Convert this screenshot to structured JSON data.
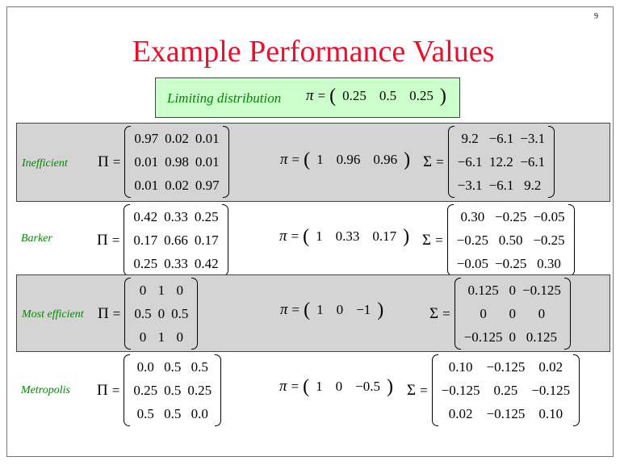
{
  "page_number": "9",
  "title": "Example Performance Values",
  "limiting": {
    "label": "Limiting distribution",
    "symbol": "π",
    "equals": "=",
    "values": [
      "0.25",
      "0.5",
      "0.25"
    ]
  },
  "symbols": {
    "Pi": "Π",
    "pi": "π",
    "Sigma": "Σ",
    "equals": "=",
    "lparen": "(",
    "rparen": ")"
  },
  "rows": [
    {
      "label": "Inefficient",
      "Pi": [
        [
          "0.97",
          "0.02",
          "0.01"
        ],
        [
          "0.01",
          "0.98",
          "0.01"
        ],
        [
          "0.01",
          "0.02",
          "0.97"
        ]
      ],
      "pi": [
        "1",
        "0.96",
        "0.96"
      ],
      "Sigma": [
        [
          "9.2",
          "−6.1",
          "−3.1"
        ],
        [
          "−6.1",
          "12.2",
          "−6.1"
        ],
        [
          "−3.1",
          "−6.1",
          "9.2"
        ]
      ]
    },
    {
      "label": "Barker",
      "Pi": [
        [
          "0.42",
          "0.33",
          "0.25"
        ],
        [
          "0.17",
          "0.66",
          "0.17"
        ],
        [
          "0.25",
          "0.33",
          "0.42"
        ]
      ],
      "pi": [
        "1",
        "0.33",
        "0.17"
      ],
      "Sigma": [
        [
          "0.30",
          "−0.25",
          "−0.05"
        ],
        [
          "−0.25",
          "0.50",
          "−0.25"
        ],
        [
          "−0.05",
          "−0.25",
          "0.30"
        ]
      ]
    },
    {
      "label": "Most efficient",
      "Pi": [
        [
          "0",
          "1",
          "0"
        ],
        [
          "0.5",
          "0",
          "0.5"
        ],
        [
          "0",
          "1",
          "0"
        ]
      ],
      "pi": [
        "1",
        "0",
        "−1"
      ],
      "Sigma": [
        [
          "0.125",
          "0",
          "−0.125"
        ],
        [
          "0",
          "0",
          "0"
        ],
        [
          "−0.125",
          "0",
          "0.125"
        ]
      ]
    },
    {
      "label": "Metropolis",
      "Pi": [
        [
          "0.0",
          "0.5",
          "0.5"
        ],
        [
          "0.25",
          "0.5",
          "0.25"
        ],
        [
          "0.5",
          "0.5",
          "0.0"
        ]
      ],
      "pi": [
        "1",
        "0",
        "−0.5"
      ],
      "Sigma": [
        [
          "0.10",
          "−0.125",
          "0.02"
        ],
        [
          "−0.125",
          "0.25",
          "−0.125"
        ],
        [
          "0.02",
          "−0.125",
          "0.10"
        ]
      ]
    }
  ]
}
